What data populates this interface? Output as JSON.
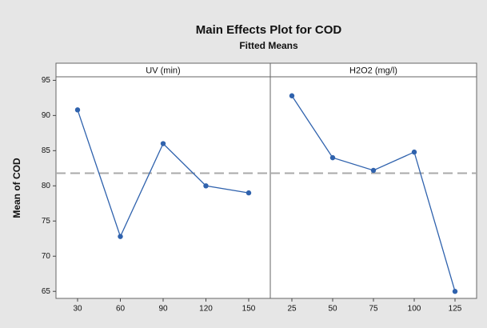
{
  "title": "Main Effects Plot for COD",
  "subtitle": "Fitted Means",
  "ylabel": "Mean of COD",
  "chart_data": [
    {
      "type": "line",
      "title": "UV (min)",
      "categories": [
        "30",
        "60",
        "90",
        "120",
        "150"
      ],
      "values": [
        90.8,
        72.8,
        86,
        80,
        79
      ],
      "color": "#2f62ad",
      "ylim": [
        64,
        95.5
      ],
      "yticks": [
        65,
        70,
        75,
        80,
        85,
        90,
        95
      ],
      "reference_line": 81.8
    },
    {
      "type": "line",
      "title": "H2O2 (mg/l)",
      "categories": [
        "25",
        "50",
        "75",
        "100",
        "125"
      ],
      "values": [
        92.8,
        84,
        82.2,
        84.8,
        65
      ],
      "color": "#2f62ad",
      "ylim": [
        64,
        95.5
      ],
      "reference_line": 81.8
    }
  ]
}
